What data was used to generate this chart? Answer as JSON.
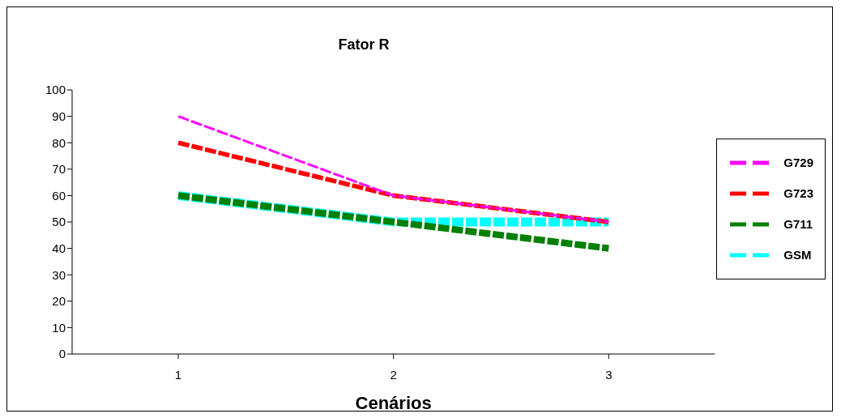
{
  "chart_data": {
    "type": "line",
    "title": "Fator R",
    "xlabel": "Cenários",
    "categories": [
      "1",
      "2",
      "3"
    ],
    "series": [
      {
        "name": "G729",
        "color": "#ff00ff",
        "values": [
          90,
          60,
          50
        ],
        "line_style": "dashed"
      },
      {
        "name": "G723",
        "color": "#ff0000",
        "values": [
          80,
          60,
          50
        ],
        "line_style": "dashed"
      },
      {
        "name": "G711",
        "color": "#008000",
        "values": [
          60,
          50,
          40
        ],
        "line_style": "dashed"
      },
      {
        "name": "GSM",
        "color": "#00ffff",
        "values": [
          60,
          50,
          50
        ],
        "line_style": "dashed"
      }
    ],
    "ylim": [
      0,
      100
    ],
    "yticks": [
      0,
      10,
      20,
      30,
      40,
      50,
      60,
      70,
      80,
      90,
      100
    ],
    "grid": false,
    "legend": "right",
    "marker": "none"
  }
}
